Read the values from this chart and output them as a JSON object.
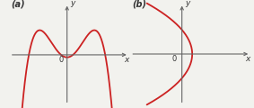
{
  "bg_color": "#f2f2ee",
  "curve_color": "#cc2222",
  "axis_color": "#666666",
  "label_color": "#333333",
  "panel_a": {
    "label": "(a)",
    "xlabel": "x",
    "ylabel": "y",
    "origin_label": "0"
  },
  "panel_b": {
    "label": "(b)",
    "xlabel": "x",
    "ylabel": "y",
    "origin_label": "0"
  }
}
